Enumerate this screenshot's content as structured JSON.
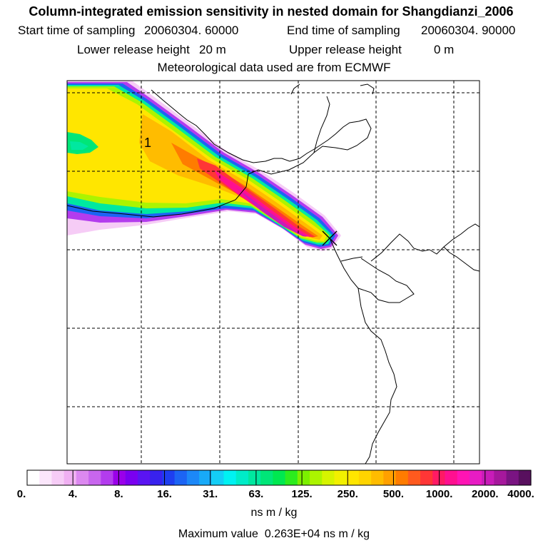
{
  "header": {
    "title": "Column-integrated emission sensitivity in nested domain for Shangdianzi_2006",
    "start_label": "Start time of sampling",
    "start_value": "20060304. 60000",
    "end_label": "End time of sampling",
    "end_value": "20060304. 90000",
    "lower_label": "Lower release height",
    "lower_value": "20 m",
    "upper_label": "Upper release height",
    "upper_value": "0 m",
    "met_text": "Meteorological data used are from ECMWF"
  },
  "map": {
    "point_label": "1",
    "release_marker": "x-marker-icon"
  },
  "colorbar": {
    "tick_labels": [
      "0.",
      "4.",
      "8.",
      "16.",
      "31.",
      "63.",
      "125.",
      "250.",
      "500.",
      "1000.",
      "2000.",
      "4000."
    ],
    "colors": [
      "#ffffff",
      "#fbe6fb",
      "#f6ccf6",
      "#f0b0f2",
      "#dc88f0",
      "#c866ee",
      "#b33cee",
      "#9a00ea",
      "#7a00f0",
      "#5a14f2",
      "#3822ee",
      "#1e3ef0",
      "#1c64f4",
      "#1c88f8",
      "#18aaf8",
      "#14cef6",
      "#00f2f2",
      "#00ecc8",
      "#00e8a0",
      "#00e678",
      "#00e850",
      "#2cec1e",
      "#7cf000",
      "#acf400",
      "#d6f400",
      "#f2f000",
      "#ffe600",
      "#ffd400",
      "#ffbc00",
      "#ffa000",
      "#ff7c00",
      "#ff5a1e",
      "#ff3636",
      "#ff1a64",
      "#ff1090",
      "#ff14b4",
      "#e81cc4",
      "#c81cb8",
      "#a6189c",
      "#7a1482",
      "#58105e"
    ],
    "units": "ns m / kg"
  },
  "footer": {
    "max_label": "Maximum value",
    "max_value": "0.263E+04",
    "max_units": "ns m / kg"
  }
}
